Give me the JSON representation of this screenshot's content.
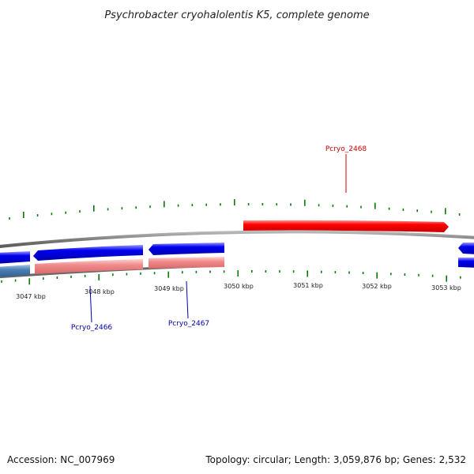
{
  "title": "Psychrobacter cryohalolentis K5, complete genome",
  "footer": {
    "accession": "Accession: NC_007969",
    "summary": "Topology: circular; Length: 3,059,876 bp; Genes: 2,532"
  },
  "colors": {
    "forward_gene": "#ff0000",
    "reverse_gene": "#0000ee",
    "forward_rna_light": "#f08a8a",
    "reverse_rna_light": "#4a7fb5",
    "tick": "#0a7a0a",
    "backbone": "#888888",
    "label_forward": "#cc0000",
    "label_reverse": "#0000aa"
  },
  "ticks": [
    {
      "label": "3047 kbp"
    },
    {
      "label": "3048 kbp"
    },
    {
      "label": "3049 kbp"
    },
    {
      "label": "3050 kbp"
    },
    {
      "label": "3051 kbp"
    },
    {
      "label": "3052 kbp"
    },
    {
      "label": "3053 kbp"
    }
  ],
  "genes": [
    {
      "name": "Pcryo_2466",
      "strand": "reverse"
    },
    {
      "name": "Pcryo_2467",
      "strand": "reverse"
    },
    {
      "name": "Pcryo_2468",
      "strand": "forward"
    }
  ]
}
